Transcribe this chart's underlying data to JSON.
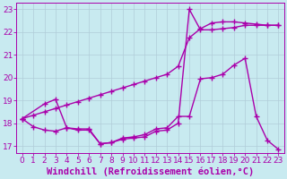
{
  "background_color": "#c8eaf0",
  "grid_color": "#b0ccd8",
  "line_color": "#aa00aa",
  "marker": "+",
  "markersize": 4,
  "linewidth": 1.0,
  "xlabel": "Windchill (Refroidissement éolien,°C)",
  "xlabel_fontsize": 7.5,
  "tick_fontsize": 6.5,
  "xlim": [
    -0.5,
    23.5
  ],
  "ylim": [
    16.7,
    23.3
  ],
  "yticks": [
    17,
    18,
    19,
    20,
    21,
    22,
    23
  ],
  "xticks": [
    0,
    1,
    2,
    3,
    4,
    5,
    6,
    7,
    8,
    9,
    10,
    11,
    12,
    13,
    14,
    15,
    16,
    17,
    18,
    19,
    20,
    21,
    22,
    23
  ],
  "series1_x": [
    0,
    1,
    2,
    3,
    4,
    5,
    6,
    7,
    8,
    9,
    10,
    11,
    12,
    13,
    14,
    15,
    16,
    17,
    18,
    19,
    20,
    21,
    22,
    23
  ],
  "series1_y": [
    18.2,
    17.85,
    17.7,
    17.65,
    17.8,
    17.75,
    17.75,
    17.1,
    17.15,
    17.3,
    17.35,
    17.4,
    17.65,
    17.7,
    18.0,
    23.0,
    22.1,
    22.1,
    22.15,
    22.2,
    22.3,
    22.3,
    22.3,
    22.3
  ],
  "series2_x": [
    0,
    1,
    2,
    3,
    4,
    5,
    6,
    7,
    8,
    9,
    10,
    11,
    12,
    13,
    14,
    15,
    16,
    17,
    18,
    19,
    20,
    21,
    22,
    23
  ],
  "series2_y": [
    18.2,
    18.35,
    18.5,
    18.65,
    18.8,
    18.95,
    19.1,
    19.25,
    19.4,
    19.55,
    19.7,
    19.85,
    20.0,
    20.15,
    20.5,
    21.75,
    22.15,
    22.4,
    22.45,
    22.45,
    22.4,
    22.35,
    22.3,
    22.3
  ],
  "series3_x": [
    0,
    2,
    3,
    4,
    5,
    6,
    7,
    8,
    9,
    10,
    11,
    12,
    13,
    14,
    15,
    16,
    17,
    18,
    19,
    20,
    21,
    22,
    23
  ],
  "series3_y": [
    18.2,
    18.85,
    19.05,
    17.8,
    17.7,
    17.7,
    17.1,
    17.15,
    17.35,
    17.4,
    17.5,
    17.75,
    17.8,
    18.3,
    18.3,
    19.95,
    20.0,
    20.15,
    20.55,
    20.85,
    18.3,
    17.25,
    16.85
  ]
}
